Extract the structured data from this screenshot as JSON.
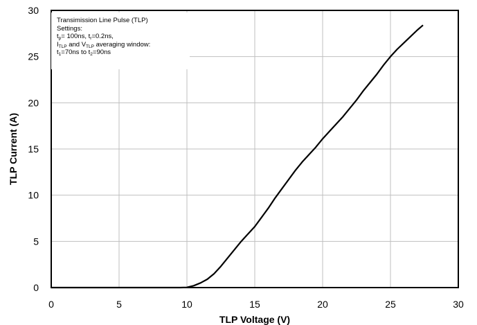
{
  "chart_data": {
    "type": "line",
    "title": "",
    "xlabel": "TLP Voltage (V)",
    "ylabel": "TLP Current (A)",
    "xlim": [
      0,
      30
    ],
    "ylim": [
      0,
      30
    ],
    "xticks": [
      0,
      5,
      10,
      15,
      20,
      25,
      30
    ],
    "yticks": [
      0,
      5,
      10,
      15,
      20,
      25,
      30
    ],
    "grid": true,
    "series": [
      {
        "name": "",
        "color": "#000000",
        "x": [
          0,
          5,
          9.5,
          10.0,
          10.5,
          11.0,
          11.5,
          12.0,
          12.5,
          13.0,
          13.5,
          14.0,
          14.5,
          15.0,
          15.5,
          16.0,
          16.5,
          17.0,
          17.5,
          18.0,
          18.5,
          19.0,
          19.5,
          20.0,
          20.5,
          21.0,
          21.5,
          22.0,
          22.5,
          23.0,
          23.5,
          24.0,
          24.5,
          25.0,
          25.5,
          26.0,
          26.5,
          27.0,
          27.4
        ],
        "y": [
          0,
          0,
          0,
          0.02,
          0.2,
          0.5,
          0.9,
          1.5,
          2.3,
          3.2,
          4.1,
          5.0,
          5.8,
          6.6,
          7.6,
          8.6,
          9.7,
          10.7,
          11.7,
          12.7,
          13.6,
          14.4,
          15.2,
          16.1,
          16.9,
          17.7,
          18.5,
          19.4,
          20.3,
          21.3,
          22.2,
          23.1,
          24.1,
          25.0,
          25.8,
          26.5,
          27.2,
          27.9,
          28.4
        ]
      }
    ]
  },
  "legend_box": {
    "line1": "Transimission Line Pulse (TLP)",
    "line2": "Settings:",
    "line3": {
      "t": "t",
      "p_sub": "p",
      "mid": "= 100ns, t",
      "r_sub": "r",
      "end": "=0.2ns,"
    },
    "line4": {
      "i": "I",
      "i_sub": "TLP",
      "mid": " and V",
      "v_sub": "TLP",
      "end": " averaging window:"
    },
    "line5": {
      "t1": "t",
      "sub1": "1",
      "mid": "=70ns to t",
      "sub2": "2",
      "end": "=90ns"
    }
  }
}
